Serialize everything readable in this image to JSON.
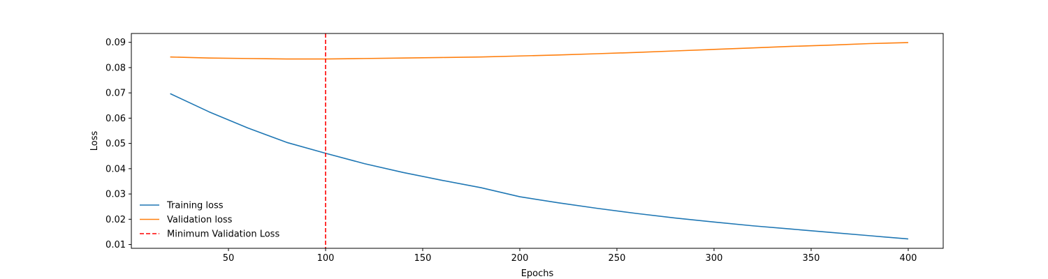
{
  "chart_data": {
    "type": "line",
    "title": "",
    "xlabel": "Epochs",
    "ylabel": "Loss",
    "xlim": [
      0,
      418
    ],
    "ylim": [
      0.0085,
      0.0935
    ],
    "xticks": [
      50,
      100,
      150,
      200,
      250,
      300,
      350,
      400
    ],
    "yticks": [
      0.01,
      0.02,
      0.03,
      0.04,
      0.05,
      0.06,
      0.07,
      0.08,
      0.09
    ],
    "grid": false,
    "legend_position": "lower-left",
    "series": [
      {
        "name": "Training loss",
        "color": "#1f77b4",
        "style": "solid",
        "x": [
          20,
          40,
          60,
          80,
          100,
          120,
          140,
          160,
          180,
          200,
          220,
          240,
          260,
          280,
          300,
          320,
          340,
          360,
          380,
          400
        ],
        "y": [
          0.0697,
          0.0625,
          0.0561,
          0.0504,
          0.0461,
          0.042,
          0.0385,
          0.0354,
          0.0325,
          0.0289,
          0.0265,
          0.0243,
          0.0223,
          0.0205,
          0.0189,
          0.0174,
          0.0161,
          0.0148,
          0.0135,
          0.0122
        ]
      },
      {
        "name": "Validation loss",
        "color": "#ff7f0e",
        "style": "solid",
        "x": [
          20,
          40,
          60,
          80,
          100,
          120,
          140,
          160,
          180,
          200,
          220,
          240,
          260,
          280,
          300,
          320,
          340,
          360,
          380,
          400
        ],
        "y": [
          0.0842,
          0.0838,
          0.0836,
          0.0834,
          0.0834,
          0.0836,
          0.0838,
          0.084,
          0.0842,
          0.0846,
          0.085,
          0.0855,
          0.086,
          0.0866,
          0.0872,
          0.0878,
          0.0884,
          0.0889,
          0.0895,
          0.0899
        ]
      }
    ],
    "vlines": [
      {
        "name": "Minimum Validation Loss",
        "x": 100,
        "color": "#ff0000",
        "style": "dashed"
      }
    ]
  }
}
